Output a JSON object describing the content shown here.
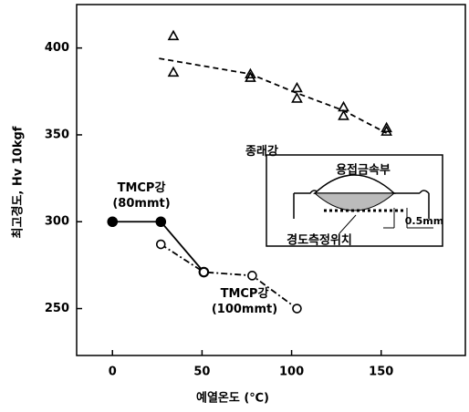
{
  "chart_data": {
    "type": "line",
    "xlabel": "예열온도 (℃)",
    "ylabel": "최고경도, Hv 10kgf",
    "xlim": [
      -20,
      197
    ],
    "ylim": [
      223,
      425
    ],
    "xticks": [
      0,
      50,
      100,
      150
    ],
    "yticks": [
      250,
      300,
      350,
      400
    ],
    "series": [
      {
        "name": "종래강",
        "color": "#000000",
        "marker": "triangle-open",
        "line_style": "none",
        "x": [
          34,
          34,
          77,
          77,
          103,
          103,
          129,
          129,
          153,
          153
        ],
        "values": [
          407,
          386,
          385,
          383,
          377,
          371,
          366,
          361,
          354,
          352
        ]
      },
      {
        "color": "#000000",
        "marker": "none",
        "line_style": "dashed",
        "x": [
          26,
          77,
          103,
          129,
          153
        ],
        "values": [
          394,
          385,
          374,
          364,
          351
        ]
      },
      {
        "name": "TMCP강\n(80mmt)",
        "color": "#000000",
        "marker": "circle-filled",
        "line_style": "solid",
        "x": [
          0,
          27,
          51
        ],
        "values": [
          300,
          300,
          271
        ]
      },
      {
        "name": "TMCP강\n(100mmt)",
        "color": "#000000",
        "marker": "circle-open",
        "line_style": "dashdot",
        "x": [
          27,
          51,
          78,
          103
        ],
        "values": [
          287,
          271,
          269,
          250
        ]
      }
    ],
    "inset": {
      "labels": [
        "용접금속부",
        "0.5mm",
        "경도측정위치"
      ]
    }
  }
}
